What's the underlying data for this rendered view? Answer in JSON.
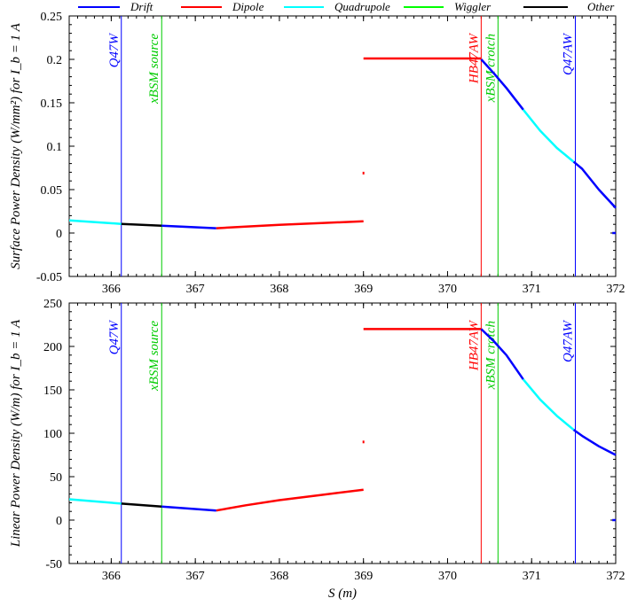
{
  "legend": [
    {
      "name": "Drift",
      "color": "#0000ff"
    },
    {
      "name": "Dipole",
      "color": "#ff0000"
    },
    {
      "name": "Quadrupole",
      "color": "#00ffff"
    },
    {
      "name": "Wiggler",
      "color": "#00ff00"
    },
    {
      "name": "Other",
      "color": "#000000"
    }
  ],
  "chart_data": [
    {
      "type": "line",
      "panel": "top",
      "xlabel": "",
      "ylabel": "Surface Power Density (W/mm²) for I_b = 1 A",
      "xlim": [
        365.5,
        372
      ],
      "ylim": [
        -0.05,
        0.25
      ],
      "x_ticks": [
        366,
        367,
        368,
        369,
        370,
        371,
        372
      ],
      "x_tick_labels": [
        "366",
        "367",
        "368",
        "369",
        "370",
        "371",
        "372"
      ],
      "y_ticks": [
        -0.05,
        0,
        0.05,
        0.1,
        0.15,
        0.2,
        0.25
      ],
      "y_tick_labels": [
        "-0.05",
        "0",
        "0.05",
        "0.1",
        "0.15",
        "0.2",
        "0.25"
      ],
      "markers": [
        {
          "x": 366.12,
          "label": "Q47W",
          "color": "#0000ff"
        },
        {
          "x": 366.6,
          "label": "xBSM source",
          "color": "#00cc00"
        },
        {
          "x": 370.4,
          "label": "HB47AW",
          "color": "#ff0000"
        },
        {
          "x": 370.6,
          "label": "xBSM crotch",
          "color": "#00cc00"
        },
        {
          "x": 371.52,
          "label": "Q47AW",
          "color": "#0000ff"
        }
      ],
      "series": [
        {
          "name": "Quadrupole",
          "color": "#00ffff",
          "x": [
            365.5,
            366.12
          ],
          "y": [
            0.0145,
            0.0105
          ]
        },
        {
          "name": "Other",
          "color": "#000000",
          "x": [
            366.12,
            366.6
          ],
          "y": [
            0.0105,
            0.0085
          ]
        },
        {
          "name": "Drift",
          "color": "#0000ff",
          "x": [
            366.6,
            367.25
          ],
          "y": [
            0.0085,
            0.0055
          ]
        },
        {
          "name": "Dipole",
          "color": "#ff0000",
          "x": [
            367.25,
            367.6,
            368.0,
            368.5,
            369.0
          ],
          "y": [
            0.0055,
            0.0075,
            0.0095,
            0.0115,
            0.0135
          ]
        },
        {
          "name": "Dipole",
          "color": "#ff0000",
          "x": [
            369.0
          ],
          "y": [
            0.069
          ]
        },
        {
          "name": "Dipole",
          "color": "#ff0000",
          "x": [
            369.0,
            370.4
          ],
          "y": [
            0.201,
            0.201
          ]
        },
        {
          "name": "Drift",
          "color": "#0000ff",
          "x": [
            370.4,
            370.55,
            370.7,
            370.9
          ],
          "y": [
            0.2,
            0.184,
            0.167,
            0.142
          ]
        },
        {
          "name": "Quadrupole",
          "color": "#00ffff",
          "x": [
            370.9,
            371.1,
            371.3,
            371.5
          ],
          "y": [
            0.142,
            0.118,
            0.098,
            0.082
          ]
        },
        {
          "name": "Drift",
          "color": "#0000ff",
          "x": [
            371.5,
            371.6,
            371.8,
            372.0
          ],
          "y": [
            0.082,
            0.074,
            0.05,
            0.029
          ]
        },
        {
          "name": "Drift",
          "color": "#0000ff",
          "x": [
            371.96,
            372.0
          ],
          "y": [
            0.0,
            0.0
          ]
        }
      ]
    },
    {
      "type": "line",
      "panel": "bottom",
      "xlabel": "S (m)",
      "ylabel": "Linear Power Density (W/m) for I_b = 1 A",
      "xlim": [
        365.5,
        372
      ],
      "ylim": [
        -50,
        250
      ],
      "x_ticks": [
        366,
        367,
        368,
        369,
        370,
        371,
        372
      ],
      "x_tick_labels": [
        "366",
        "367",
        "368",
        "369",
        "370",
        "371",
        "372"
      ],
      "y_ticks": [
        -50,
        0,
        50,
        100,
        150,
        200,
        250
      ],
      "y_tick_labels": [
        "-50",
        "0",
        "50",
        "100",
        "150",
        "200",
        "250"
      ],
      "markers": [
        {
          "x": 366.12,
          "label": "Q47W",
          "color": "#0000ff"
        },
        {
          "x": 366.6,
          "label": "xBSM source",
          "color": "#00cc00"
        },
        {
          "x": 370.4,
          "label": "HB47AW",
          "color": "#ff0000"
        },
        {
          "x": 370.6,
          "label": "xBSM crotch",
          "color": "#00cc00"
        },
        {
          "x": 371.52,
          "label": "Q47AW",
          "color": "#0000ff"
        }
      ],
      "series": [
        {
          "name": "Quadrupole",
          "color": "#00ffff",
          "x": [
            365.5,
            366.12
          ],
          "y": [
            24,
            19
          ]
        },
        {
          "name": "Other",
          "color": "#000000",
          "x": [
            366.12,
            366.6
          ],
          "y": [
            19,
            15.5
          ]
        },
        {
          "name": "Drift",
          "color": "#0000ff",
          "x": [
            366.6,
            367.25
          ],
          "y": [
            15.5,
            11
          ]
        },
        {
          "name": "Dipole",
          "color": "#ff0000",
          "x": [
            367.25,
            367.6,
            368.0,
            368.5,
            369.0
          ],
          "y": [
            11,
            17,
            23,
            29,
            35
          ]
        },
        {
          "name": "Dipole",
          "color": "#ff0000",
          "x": [
            369.0
          ],
          "y": [
            90
          ]
        },
        {
          "name": "Dipole",
          "color": "#ff0000",
          "x": [
            369.0,
            370.4
          ],
          "y": [
            220,
            220
          ]
        },
        {
          "name": "Drift",
          "color": "#0000ff",
          "x": [
            370.4,
            370.55,
            370.7,
            370.9
          ],
          "y": [
            220,
            206,
            190,
            162
          ]
        },
        {
          "name": "Quadrupole",
          "color": "#00ffff",
          "x": [
            370.9,
            371.1,
            371.3,
            371.5
          ],
          "y": [
            162,
            139,
            120,
            104
          ]
        },
        {
          "name": "Drift",
          "color": "#0000ff",
          "x": [
            371.5,
            371.6,
            371.8,
            372.0
          ],
          "y": [
            104,
            97,
            85,
            75
          ]
        },
        {
          "name": "Drift",
          "color": "#0000ff",
          "x": [
            371.96,
            372.0
          ],
          "y": [
            0,
            0
          ]
        }
      ]
    }
  ]
}
